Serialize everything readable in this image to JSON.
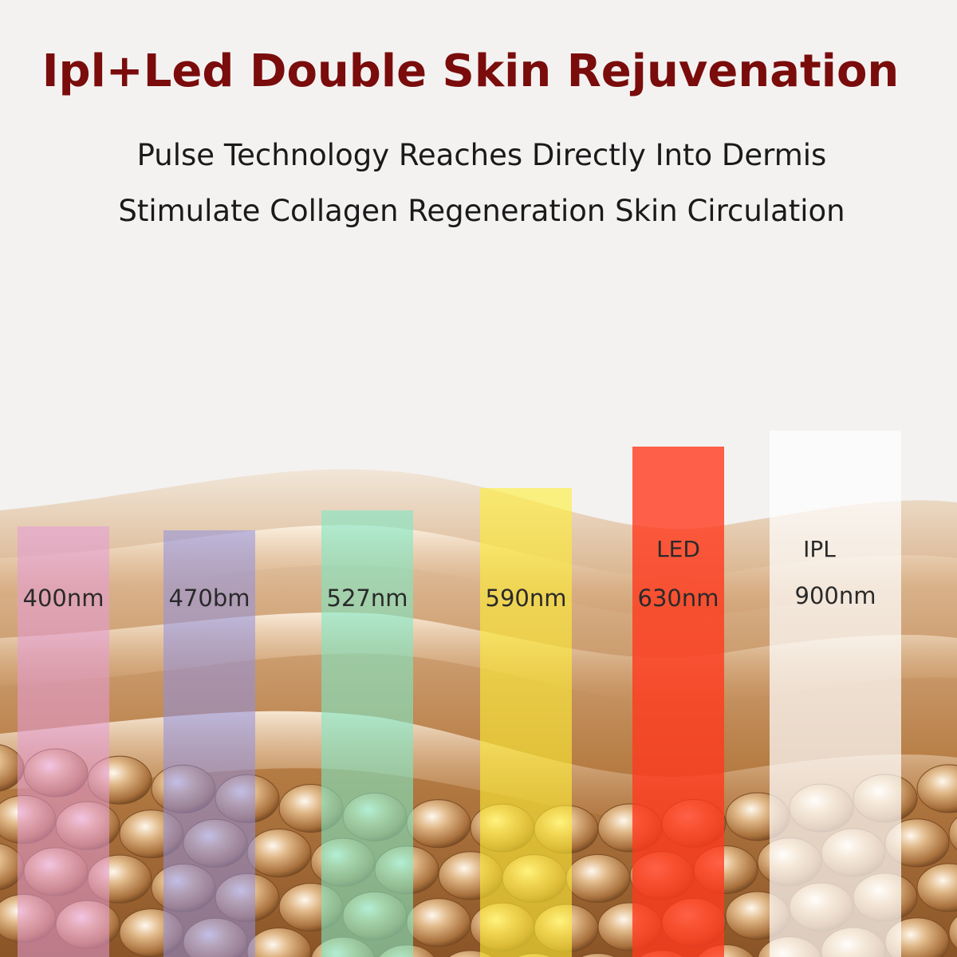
{
  "header": {
    "title": "Ipl+Led Double Skin Rejuvenation",
    "lines": [
      "Pulse Technology Reaches Directly Into Dermis",
      "Stimulate Collagen Regeneration Skin Circulation"
    ]
  },
  "bands": [
    {
      "label": "400nm"
    },
    {
      "label": "470bm"
    },
    {
      "label": "527nm"
    },
    {
      "label": "590nm"
    },
    {
      "tag": "LED",
      "label": "630nm"
    },
    {
      "tag": "IPL",
      "label": "900nm"
    }
  ]
}
